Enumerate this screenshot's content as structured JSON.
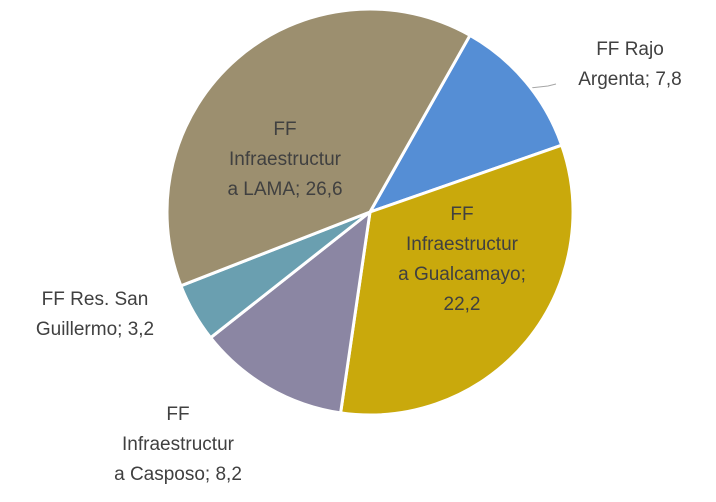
{
  "chart_data": {
    "type": "pie",
    "values": [
      7.8,
      22.2,
      8.2,
      3.2,
      26.6
    ],
    "value_labels": [
      "FF Rajo Argenta; 7,8",
      "FF Infraestructura Gualcamayo; 22,2",
      "FF Infraestructura Casposo; 8,2",
      "FF Res. San Guillermo; 3,2",
      "FF Infraestructura LAMA; 26,6"
    ],
    "colors": [
      "#558ed5",
      "#c9a90c",
      "#8b86a3",
      "#6a9fb0",
      "#9c8f6f"
    ]
  }
}
